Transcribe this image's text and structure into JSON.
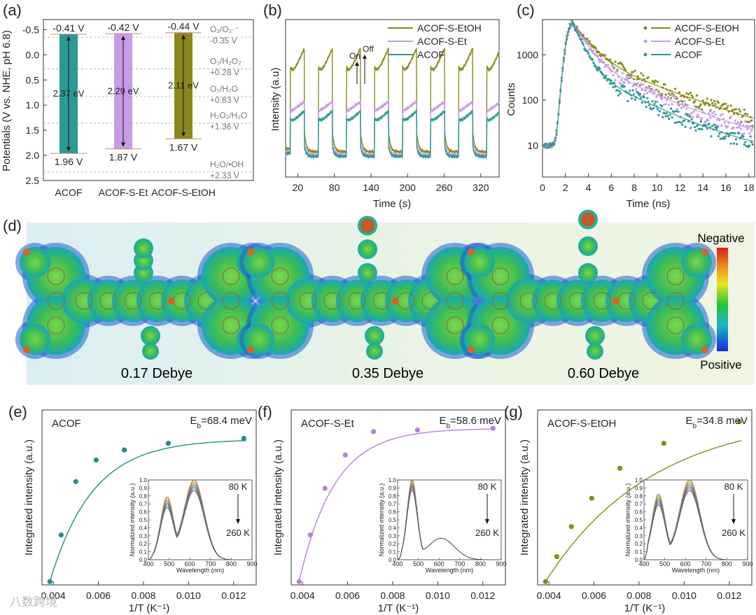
{
  "chart_data": [
    {
      "id": "a",
      "panel_label": "(a)",
      "type": "bar",
      "title": "",
      "xlabel": "",
      "ylabel": "Potentials (V vs. NHE, pH 6.8)",
      "ylim": [
        2.5,
        -0.7
      ],
      "yticks": [
        "-0.5",
        "0.0",
        "0.5",
        "1.0",
        "1.5",
        "2.0",
        "2.5"
      ],
      "ytick_values": [
        -0.5,
        0.0,
        0.5,
        1.0,
        1.5,
        2.0,
        2.5
      ],
      "categories": [
        "ACOF",
        "ACOF-S-Et",
        "ACOF-S-EtOH"
      ],
      "cb": [
        -0.41,
        -0.42,
        -0.44
      ],
      "vb": [
        1.96,
        1.87,
        1.67
      ],
      "cb_labels": [
        "-0.41 V",
        "-0.42 V",
        "-0.44 V"
      ],
      "vb_labels": [
        "1.96 V",
        "1.87 V",
        "1.67 V"
      ],
      "gaps": [
        "2.37 eV",
        "2.29 eV",
        "2.11 eV"
      ],
      "colors": [
        "#2a9a96",
        "#c79be6",
        "#8a8a1a"
      ],
      "redox": [
        {
          "value": -0.35,
          "label1": "O₂/O₂·⁻",
          "label2": "-0.35 V"
        },
        {
          "value": 0.28,
          "label1": "O₂/H₂O₂",
          "label2": "+0.28 V"
        },
        {
          "value": 0.83,
          "label1": "O₂/H₂O",
          "label2": "+0.83 V"
        },
        {
          "value": 1.36,
          "label1": "H₂O₂/H₂O",
          "label2": "+1.36 V"
        },
        {
          "value": 2.33,
          "label1": "H₂O/•OH",
          "label2": "+2.33 V"
        }
      ]
    },
    {
      "id": "b",
      "panel_label": "(b)",
      "type": "line",
      "xlabel": "Time (s)",
      "ylabel": "Intensity (a.u)",
      "xlim": [
        0,
        350
      ],
      "xticks": [
        20,
        80,
        140,
        200,
        260,
        320
      ],
      "ylim": [
        0,
        1
      ],
      "period": 46,
      "first_on": 8,
      "on_duration": 23,
      "series": [
        {
          "name": "ACOF-S-EtOH",
          "color": "#8a8a1a",
          "base": 0.16,
          "peak": 0.82,
          "plateau": 0.65
        },
        {
          "name": "ACOF-S-Et",
          "color": "#c79be6",
          "base": 0.14,
          "peak": 0.48,
          "plateau": 0.47
        },
        {
          "name": "ACOF",
          "color": "#2a9a96",
          "base": 0.13,
          "peak": 0.42,
          "plateau": 0.36
        }
      ],
      "annotations": [
        "On",
        "Off"
      ]
    },
    {
      "id": "c",
      "panel_label": "(c)",
      "type": "scatter",
      "xlabel": "Time (ns)",
      "ylabel": "Counts",
      "xlim": [
        0,
        18.5
      ],
      "xticks": [
        0,
        2,
        4,
        6,
        8,
        10,
        12,
        14,
        16,
        18
      ],
      "ylim_log": [
        2,
        6000
      ],
      "yticks": [
        10,
        100,
        1000
      ],
      "ytick_labels": [
        "10",
        "100",
        "1000"
      ],
      "peak_time": 2.6,
      "series": [
        {
          "name": "ACOF-S-EtOH",
          "color": "#8a8a1a",
          "tau1": 1.2,
          "tau2": 4.8,
          "a1": 0.82
        },
        {
          "name": "ACOF-S-Et",
          "color": "#c79be6",
          "tau1": 1.0,
          "tau2": 4.2,
          "a1": 0.86
        },
        {
          "name": "ACOF",
          "color": "#2a9a96",
          "tau1": 0.75,
          "tau2": 3.6,
          "a1": 0.9
        }
      ]
    },
    {
      "id": "e",
      "panel_label": "(e)",
      "type": "scatter",
      "name": "ACOF",
      "color": "#1f8e8a",
      "eb_label": "E",
      "eb_sub": "b",
      "eb_value": "=68.4 meV",
      "xlabel": "1/T (K⁻¹)",
      "ylabel": "Integrated intensity (a.u.)",
      "xlim": [
        0.0035,
        0.013
      ],
      "ylim": [
        0,
        1.05
      ],
      "xticks": [
        "0.004",
        "0.006",
        "0.008",
        "0.010",
        "0.012"
      ],
      "xtick_values": [
        0.004,
        0.006,
        0.008,
        0.01,
        0.012
      ],
      "x": [
        0.00385,
        0.00435,
        0.005,
        0.0059,
        0.00715,
        0.0091,
        0.01245
      ],
      "y": [
        0.02,
        0.3,
        0.62,
        0.75,
        0.81,
        0.85,
        0.88
      ],
      "fit_k": 530,
      "fit_max": 0.875,
      "inset": {
        "xlabel": "Wavelength (nm)",
        "ylabel": "Normalized intensity (a.u.)",
        "xticks": [
          "400",
          "500",
          "600",
          "700",
          "800",
          "900"
        ],
        "yticks": [
          "0.0",
          "0.1",
          "0.2",
          "0.3",
          "0.4",
          "0.5",
          "0.6",
          "0.7",
          "0.8",
          "0.9",
          "1.0"
        ],
        "peak1": 490,
        "peak2": 620,
        "ratio": 0.78,
        "temp_high": "80 K",
        "temp_low": "260 K"
      }
    },
    {
      "id": "f",
      "panel_label": "(f)",
      "type": "scatter",
      "name": "ACOF-S-Et",
      "color": "#b57ee0",
      "eb_label": "E",
      "eb_sub": "b",
      "eb_value": "=58.6 meV",
      "xlabel": "1/T (K⁻¹)",
      "ylabel": "Integrated intensity (a.u.)",
      "xlim": [
        0.0035,
        0.013
      ],
      "ylim": [
        0,
        1.05
      ],
      "xticks": [
        "0.004",
        "0.006",
        "0.008",
        "0.010",
        "0.012"
      ],
      "xtick_values": [
        0.004,
        0.006,
        0.008,
        0.01,
        0.012
      ],
      "x": [
        0.00385,
        0.00435,
        0.005,
        0.0059,
        0.00715,
        0.0091,
        0.01245
      ],
      "y": [
        0.02,
        0.3,
        0.58,
        0.78,
        0.92,
        0.93,
        0.94
      ],
      "fit_k": 640,
      "fit_max": 0.94,
      "inset": {
        "xlabel": "Wavelength (nm)",
        "ylabel": "Normalized intensity (a.u.)",
        "xticks": [
          "400",
          "500",
          "600",
          "700",
          "800",
          "900"
        ],
        "yticks": [
          "0.0",
          "0.1",
          "0.2",
          "0.3",
          "0.4",
          "0.5",
          "0.6",
          "0.7",
          "0.8",
          "0.9",
          "1.0"
        ],
        "peak1": 470,
        "peak2": 610,
        "ratio": 0.27,
        "temp_high": "80 K",
        "temp_low": "260 K"
      }
    },
    {
      "id": "g",
      "panel_label": "(g)",
      "type": "scatter",
      "name": "ACOF-S-EtOH",
      "color": "#8a8a1a",
      "eb_label": "E",
      "eb_sub": "b",
      "eb_value": "=34.8 meV",
      "xlabel": "1/T (K⁻¹)",
      "ylabel": "Integrated intensity (a.u.)",
      "xlim": [
        0.0035,
        0.013
      ],
      "ylim": [
        0,
        1.05
      ],
      "xticks": [
        "0.004",
        "0.006",
        "0.008",
        "0.010",
        "0.012"
      ],
      "xtick_values": [
        0.004,
        0.006,
        0.008,
        0.01,
        0.012
      ],
      "x": [
        0.00385,
        0.00435,
        0.005,
        0.0059,
        0.00715,
        0.0091,
        0.01245
      ],
      "y": [
        0.02,
        0.17,
        0.35,
        0.52,
        0.7,
        0.85,
        0.98
      ],
      "fit_k": 210,
      "fit_max": 1.03,
      "inset": {
        "xlabel": "Wavelength (nm)",
        "ylabel": "Normalized intensity (a.u.)",
        "xticks": [
          "400",
          "500",
          "600",
          "700",
          "800",
          "900"
        ],
        "yticks": [
          "0.0",
          "0.1",
          "0.2",
          "0.3",
          "0.4",
          "0.5",
          "0.6",
          "0.7",
          "0.8",
          "0.9",
          "1.0"
        ],
        "peak1": 470,
        "peak2": 620,
        "ratio": 0.82,
        "temp_high": "80 K",
        "temp_low": "260 K"
      }
    }
  ],
  "panel_d": {
    "panel_label": "(d)",
    "dipoles": [
      "0.17 Debye",
      "0.35 Debye",
      "0.60 Debye"
    ],
    "colorbar_top": "Negative",
    "colorbar_bottom": "Positive"
  },
  "watermark": "八数跨境"
}
